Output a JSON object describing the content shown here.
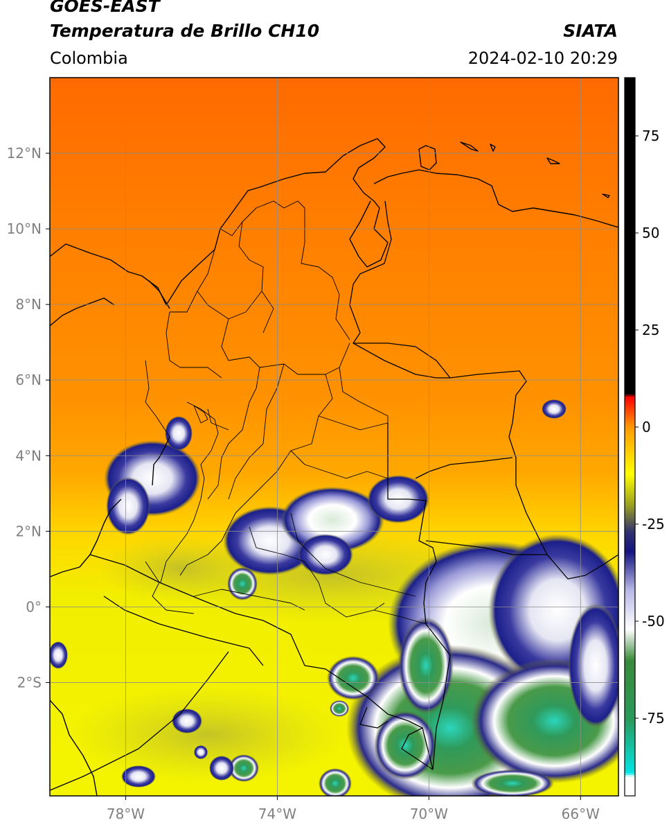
{
  "header": {
    "satellite": "GOES-EAST",
    "product": "Temperatura de Brillo CH10",
    "organization": "SIATA",
    "region": "Colombia",
    "timestamp": "2024-02-10 20:29"
  },
  "map": {
    "extent": {
      "lon_min": -80.0,
      "lon_max": -65.0,
      "lat_min": -5.0,
      "lat_max": 14.0
    },
    "lat_ticks": [
      {
        "value": 12,
        "label": "12°N"
      },
      {
        "value": 10,
        "label": "10°N"
      },
      {
        "value": 8,
        "label": "8°N"
      },
      {
        "value": 6,
        "label": "6°N"
      },
      {
        "value": 4,
        "label": "4°N"
      },
      {
        "value": 2,
        "label": "2°N"
      },
      {
        "value": 0,
        "label": "0°"
      },
      {
        "value": -2,
        "label": "2°S"
      }
    ],
    "lon_ticks": [
      {
        "value": -78,
        "label": "78°W"
      },
      {
        "value": -74,
        "label": "74°W"
      },
      {
        "value": -70,
        "label": "70°W"
      },
      {
        "value": -66,
        "label": "66°W"
      }
    ],
    "grid": true,
    "colors": {
      "warm_north": "#ff7a00",
      "mid": "#ffa500",
      "warm_south": "#f2f200",
      "cloud_blue": "#1c1f8a",
      "cloud_white": "#f2f2f2",
      "cloud_green": "#3a9a4a",
      "cloud_cyan": "#2ad1b8",
      "border_line": "#000000",
      "grid_line": "#8c8c8c"
    }
  },
  "colorbar": {
    "min": -95,
    "max": 90,
    "ticks": [
      {
        "value": 75,
        "label": "75"
      },
      {
        "value": 50,
        "label": "50"
      },
      {
        "value": 25,
        "label": "25"
      },
      {
        "value": 0,
        "label": "0"
      },
      {
        "value": -25,
        "label": "-25"
      },
      {
        "value": -50,
        "label": "-50"
      },
      {
        "value": -75,
        "label": "-75"
      }
    ],
    "stops": [
      {
        "value": -95,
        "color": "#ffffff"
      },
      {
        "value": -90,
        "color": "#ffffff"
      },
      {
        "value": -89,
        "color": "#00e5e5"
      },
      {
        "value": -75,
        "color": "#2a9a5a"
      },
      {
        "value": -60,
        "color": "#3a8a3a"
      },
      {
        "value": -52,
        "color": "#ffffff"
      },
      {
        "value": -42,
        "color": "#b8b8e8"
      },
      {
        "value": -32,
        "color": "#141480"
      },
      {
        "value": -27,
        "color": "#303070"
      },
      {
        "value": -20,
        "color": "#9aa020"
      },
      {
        "value": -12,
        "color": "#ffff00"
      },
      {
        "value": 0,
        "color": "#ff9a00"
      },
      {
        "value": 8,
        "color": "#ff0000"
      },
      {
        "value": 8.5,
        "color": "#000000"
      },
      {
        "value": 90,
        "color": "#000000"
      }
    ]
  }
}
